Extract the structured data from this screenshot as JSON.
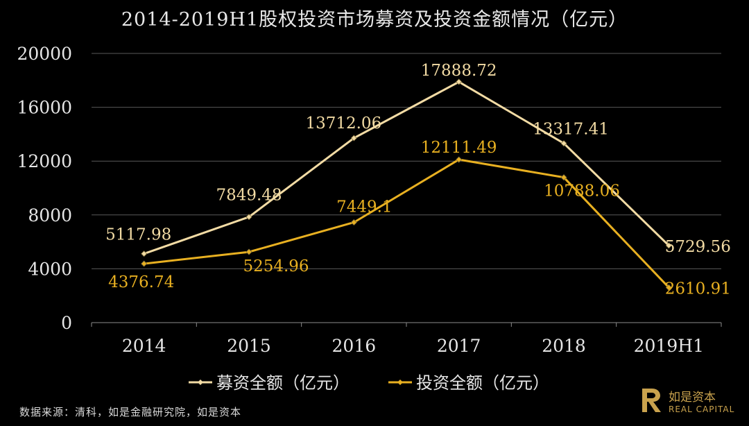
{
  "title": "2014-2019H1股权投资市场募资及投资金额情况（亿元）",
  "source": "数据来源：清科，如是金融研究院，如是资本",
  "brand": {
    "name": "如是资本",
    "english": "REAL CAPITAL",
    "color": "#c9a24d"
  },
  "chart_data": {
    "type": "line",
    "categories": [
      "2014",
      "2015",
      "2016",
      "2017",
      "2018",
      "2019H1"
    ],
    "y_ticks": [
      0,
      4000,
      8000,
      12000,
      16000,
      20000
    ],
    "ylim": [
      0,
      20000
    ],
    "grid": true,
    "legend_position": "bottom",
    "series": [
      {
        "name": "募资全额（亿元）",
        "color": "#f2dba4",
        "values": [
          5117.98,
          7849.48,
          13712.06,
          17888.72,
          13317.41,
          5729.56
        ],
        "labels": [
          "5117.98",
          "7849.48",
          "13712.06",
          "17888.72",
          "13317.41",
          "5729.56"
        ]
      },
      {
        "name": "投资全额（亿元）",
        "color": "#e8b021",
        "values": [
          4376.74,
          5254.96,
          7449.1,
          12111.49,
          10788.06,
          2610.91
        ],
        "labels": [
          "4376.74",
          "5254.96",
          "7449.1",
          "12111.49",
          "10788.06",
          "2610.91"
        ]
      }
    ]
  }
}
